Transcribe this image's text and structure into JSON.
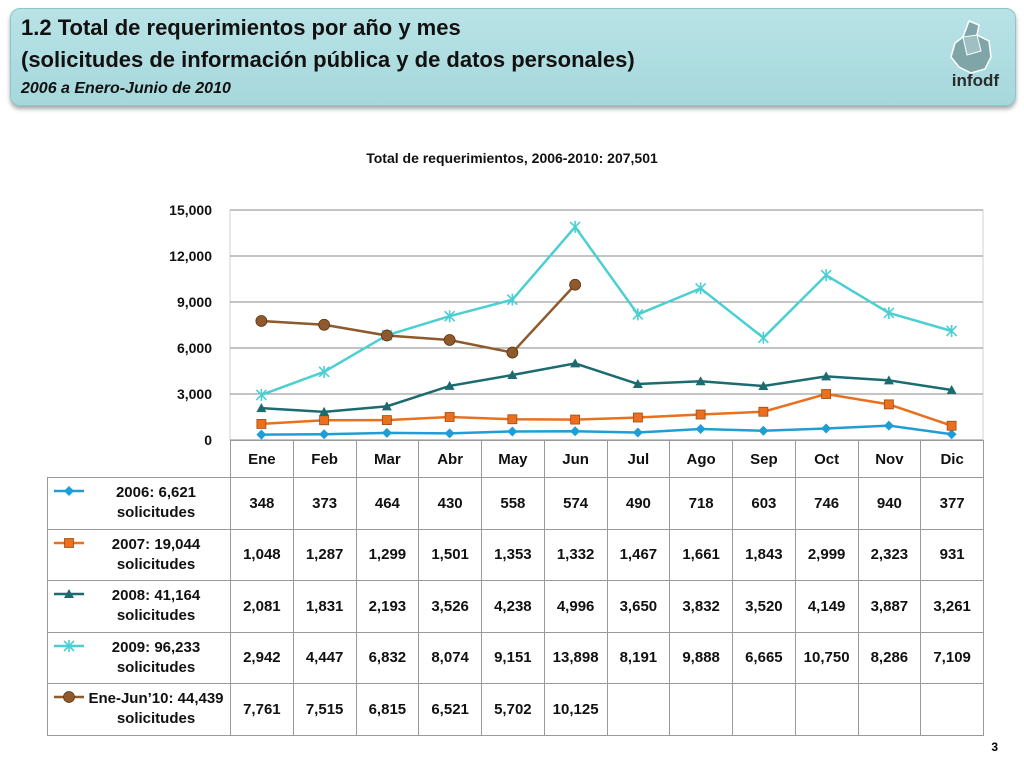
{
  "header": {
    "title_line1": "1.2 Total de requerimientos por año y mes",
    "title_line2": "(solicitudes de información pública y de datos personales)",
    "subtitle": "2006 a Enero-Junio de 2010",
    "logo": "infodf"
  },
  "page_number": "3",
  "chart_data": {
    "type": "line",
    "title": "Total de requerimientos, 2006-2010: 207,501",
    "categories": [
      "Ene",
      "Feb",
      "Mar",
      "Abr",
      "May",
      "Jun",
      "Jul",
      "Ago",
      "Sep",
      "Oct",
      "Nov",
      "Dic"
    ],
    "ylim": [
      0,
      15000
    ],
    "yticks": [
      0,
      {
        "value": 3000,
        "label": "3,000"
      },
      {
        "value": 6000,
        "label": "6,000"
      },
      {
        "value": 9000,
        "label": "9,000"
      },
      {
        "value": 12000,
        "label": "12,000"
      },
      {
        "value": 15000,
        "label": "15,000"
      }
    ],
    "grid": true,
    "series": [
      {
        "name": "2006: 6,621 solicitudes",
        "color": "#1f9ed6",
        "marker": "diamond",
        "values": [
          348,
          373,
          464,
          430,
          558,
          574,
          490,
          718,
          603,
          746,
          940,
          377
        ]
      },
      {
        "name": "2007: 19,044 solicitudes",
        "color": "#e8701e",
        "marker": "square",
        "values": [
          1048,
          1287,
          1299,
          1501,
          1353,
          1332,
          1467,
          1661,
          1843,
          2999,
          2323,
          931
        ],
        "value_labels": [
          "1,048",
          "1,287",
          "1,299",
          "1,501",
          "1,353",
          "1,332",
          "1,467",
          "1,661",
          "1,843",
          "2,999",
          "2,323",
          "931"
        ]
      },
      {
        "name": "2008: 41,164 solicitudes",
        "color": "#1c6b6f",
        "marker": "triangle",
        "values": [
          2081,
          1831,
          2193,
          3526,
          4238,
          4996,
          3650,
          3832,
          3520,
          4149,
          3887,
          3261
        ],
        "value_labels": [
          "2,081",
          "1,831",
          "2,193",
          "3,526",
          "4,238",
          "4,996",
          "3,650",
          "3,832",
          "3,520",
          "4,149",
          "3,887",
          "3,261"
        ]
      },
      {
        "name": "2009: 96,233 solicitudes",
        "color": "#4ccfd3",
        "marker": "star",
        "values": [
          2942,
          4447,
          6832,
          8074,
          9151,
          13898,
          8191,
          9888,
          6665,
          10750,
          8286,
          7109
        ],
        "value_labels": [
          "2,942",
          "4,447",
          "6,832",
          "8,074",
          "9,151",
          "13,898",
          "8,191",
          "9,888",
          "6,665",
          "10,750",
          "8,286",
          "7,109"
        ]
      },
      {
        "name": "Ene-Jun’10: 44,439 solicitudes",
        "color": "#8e5a2c",
        "marker": "circle",
        "values": [
          7761,
          7515,
          6815,
          6521,
          5702,
          10125,
          null,
          null,
          null,
          null,
          null,
          null
        ],
        "value_labels": [
          "7,761",
          "7,515",
          "6,815",
          "6,521",
          "5,702",
          "10,125",
          null,
          null,
          null,
          null,
          null,
          null
        ]
      }
    ]
  }
}
